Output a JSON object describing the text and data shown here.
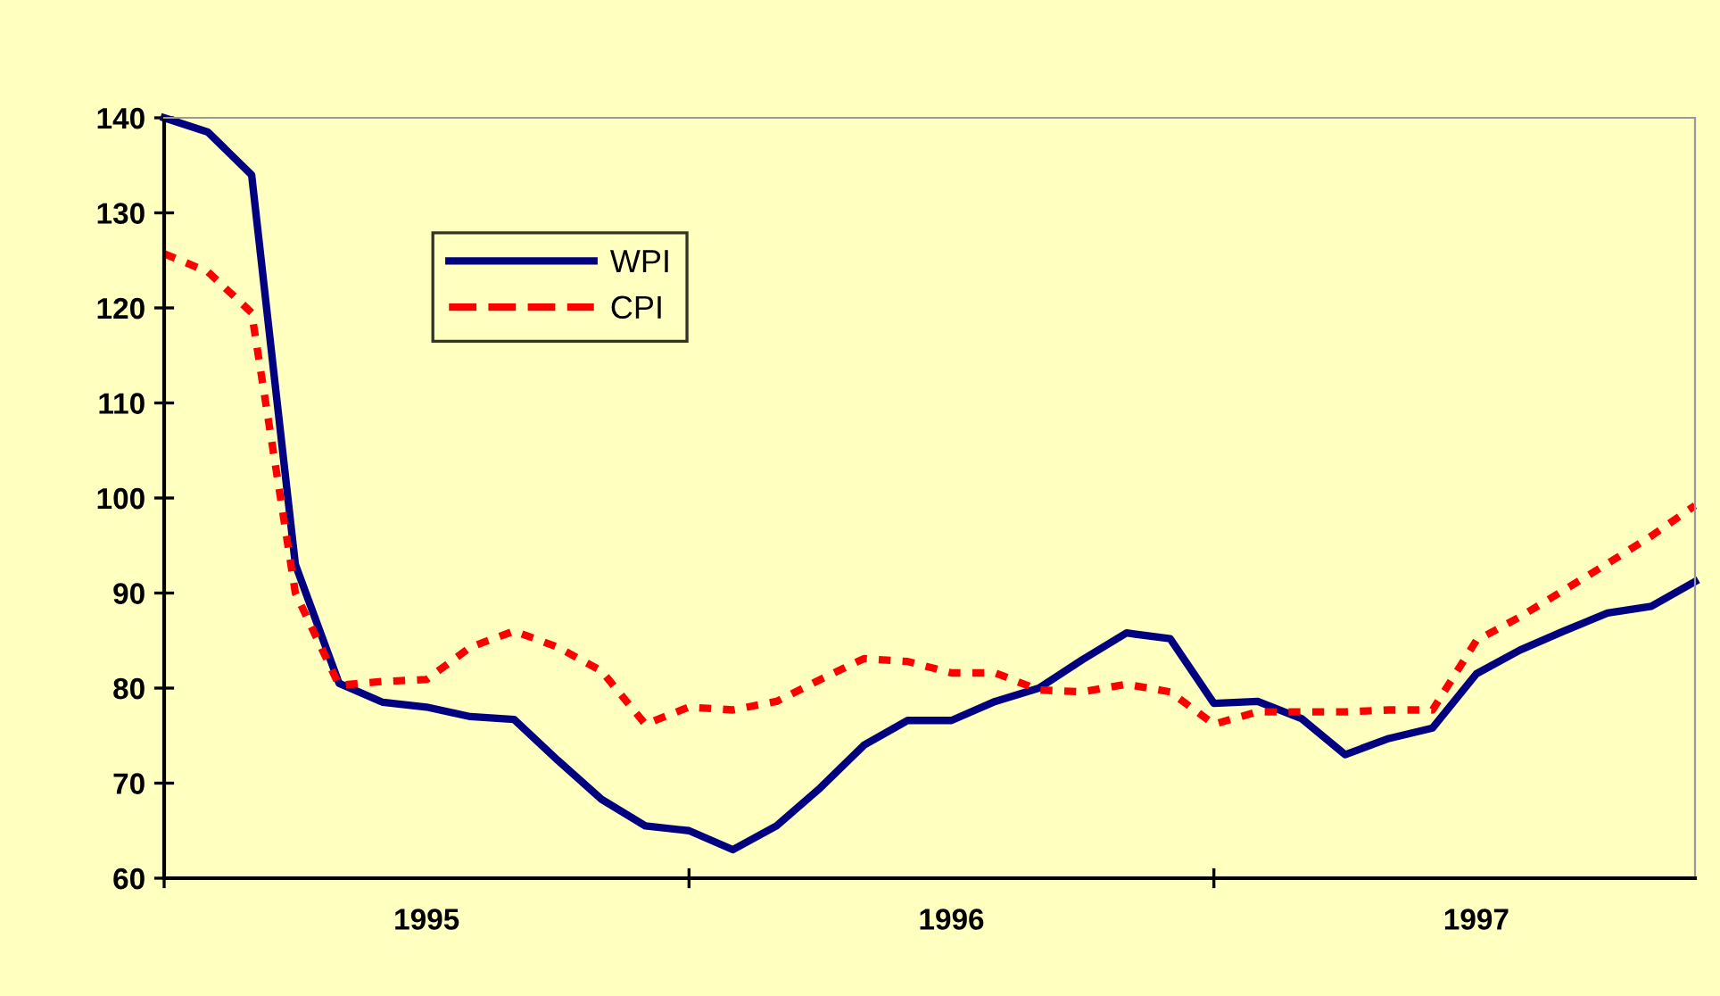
{
  "chart_data": {
    "type": "line",
    "categories": [
      null,
      null,
      null,
      null,
      null,
      null,
      "1995",
      null,
      null,
      null,
      null,
      null,
      null,
      null,
      null,
      null,
      null,
      null,
      "1996",
      null,
      null,
      null,
      null,
      null,
      null,
      null,
      null,
      null,
      null,
      null,
      "1997",
      null,
      null,
      null,
      null,
      null
    ],
    "series": [
      {
        "name": "WPI",
        "color": "#000080",
        "line_style": "solid",
        "values": [
          140,
          138.5,
          134,
          93,
          80.5,
          78.5,
          78,
          77,
          76.7,
          72.4,
          68.3,
          65.5,
          65,
          63,
          65.5,
          69.5,
          74,
          76.6,
          76.6,
          78.6,
          80,
          83,
          85.8,
          85.2,
          78.4,
          78.6,
          76.8,
          73,
          74.7,
          75.8,
          81.5,
          84,
          86,
          87.9,
          88.6,
          91.2
        ]
      },
      {
        "name": "CPI",
        "color": "#ff0000",
        "line_style": "dashed",
        "values": [
          125.7,
          123.8,
          119.5,
          90,
          80.3,
          80.7,
          80.9,
          84.3,
          86,
          84.3,
          81.8,
          76.2,
          78,
          77.7,
          78.6,
          80.9,
          83.1,
          82.8,
          81.6,
          81.6,
          79.8,
          79.6,
          80.4,
          79.6,
          76.2,
          77.5,
          77.5,
          77.5,
          77.7,
          77.7,
          85,
          87.5,
          90.3,
          93.1,
          96,
          99.2
        ]
      }
    ],
    "ylim": [
      60,
      140
    ],
    "yticks": [
      60,
      70,
      80,
      90,
      100,
      110,
      120,
      130,
      140
    ],
    "grid": false,
    "legend": "top left",
    "marker": "none"
  }
}
